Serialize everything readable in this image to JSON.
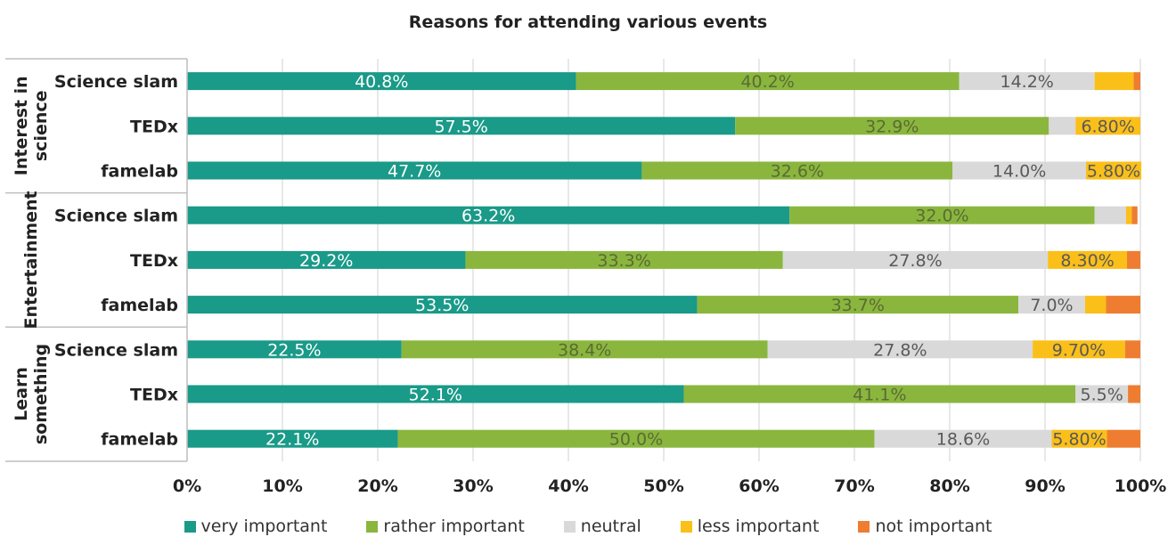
{
  "chart_data": {
    "type": "bar",
    "orientation": "horizontal",
    "stacked": "percent",
    "title": "Reasons for attending various events",
    "groups": [
      {
        "label": "Interest in science",
        "lines": [
          "Interest in",
          "science"
        ],
        "rows": [
          {
            "label": "Science slam",
            "values": [
              40.8,
              40.2,
              14.2,
              4.1,
              0.7
            ],
            "labels": [
              "40.8%",
              "40.2%",
              "14.2%",
              "",
              ""
            ]
          },
          {
            "label": "TEDx",
            "values": [
              57.5,
              32.9,
              2.8,
              6.8,
              0.0
            ],
            "labels": [
              "57.5%",
              "32.9%",
              "",
              "6.80%",
              ""
            ]
          },
          {
            "label": "famelab",
            "values": [
              47.7,
              32.6,
              14.0,
              5.8,
              0.0
            ],
            "labels": [
              "47.7%",
              "32.6%",
              "14.0%",
              "5.80%",
              ""
            ]
          }
        ]
      },
      {
        "label": "Entertainment",
        "lines": [
          "Entertainment"
        ],
        "rows": [
          {
            "label": "Science slam",
            "values": [
              63.2,
              32.0,
              3.3,
              0.6,
              0.6
            ],
            "labels": [
              "63.2%",
              "32.0%",
              "",
              "",
              ""
            ]
          },
          {
            "label": "TEDx",
            "values": [
              29.2,
              33.3,
              27.8,
              8.3,
              1.4
            ],
            "labels": [
              "29.2%",
              "33.3%",
              "27.8%",
              "8.30%",
              ""
            ]
          },
          {
            "label": "famelab",
            "values": [
              53.5,
              33.7,
              7.0,
              2.2,
              3.6
            ],
            "labels": [
              "53.5%",
              "33.7%",
              "7.0%",
              "",
              ""
            ]
          }
        ]
      },
      {
        "label": "Learn something",
        "lines": [
          "Learn",
          "something"
        ],
        "rows": [
          {
            "label": "Science slam",
            "values": [
              22.5,
              38.4,
              27.8,
              9.7,
              1.6
            ],
            "labels": [
              "22.5%",
              "38.4%",
              "27.8%",
              "9.70%",
              ""
            ]
          },
          {
            "label": "TEDx",
            "values": [
              52.1,
              41.1,
              5.5,
              0.0,
              1.3
            ],
            "labels": [
              "52.1%",
              "41.1%",
              "5.5%",
              "",
              ""
            ]
          },
          {
            "label": "famelab",
            "values": [
              22.1,
              50.0,
              18.6,
              5.8,
              3.5
            ],
            "labels": [
              "22.1%",
              "50.0%",
              "18.6%",
              "5.80%",
              ""
            ]
          }
        ]
      }
    ],
    "series": [
      {
        "name": "very important",
        "color": "#1a9a88",
        "label_color": "#ffffff"
      },
      {
        "name": "rather important",
        "color": "#8ab63e",
        "label_color": "#5a6b33"
      },
      {
        "name": "neutral",
        "color": "#d9d9d9",
        "label_color": "#595959"
      },
      {
        "name": "less important",
        "color": "#fbbf1a",
        "label_color": "#595959"
      },
      {
        "name": "not important",
        "color": "#ee7d31",
        "label_color": "#595959"
      }
    ],
    "xlim": [
      0,
      100
    ],
    "xticks": [
      "0%",
      "10%",
      "20%",
      "30%",
      "40%",
      "50%",
      "60%",
      "70%",
      "80%",
      "90%",
      "100%"
    ],
    "grid": true,
    "legend": "bottom"
  }
}
